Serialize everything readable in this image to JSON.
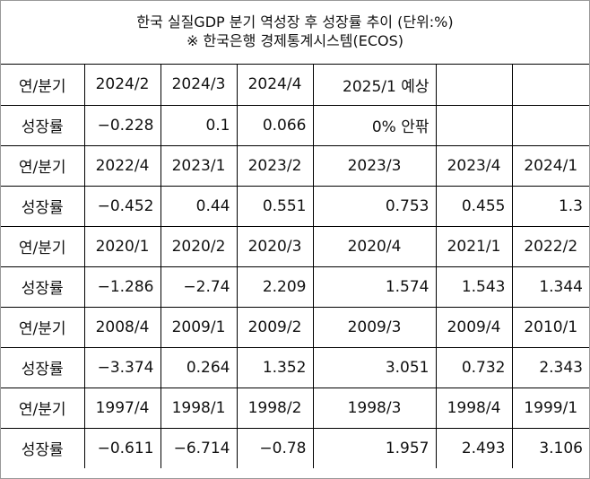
{
  "title": "한국 실질GDP 분기 역성장 후 성장률 추이 (단위:%)",
  "source": "※ 한국은행 경제통계시스템(ECOS)",
  "table": {
    "rows": [
      [
        "연/분기",
        "2024/2",
        "2024/3",
        "2024/4",
        "2025/1 예상"
      ],
      [
        "성장률",
        "−0.228",
        "0.1",
        "0.066",
        "0% 안팎"
      ],
      [
        "연/분기",
        "2022/4",
        "2023/1",
        "2023/2",
        "2023/3",
        "2023/4",
        "2024/1"
      ],
      [
        "성장률",
        "−0.452",
        "0.44",
        "0.551",
        "0.753",
        "0.455",
        "1.3"
      ],
      [
        "연/분기",
        "2020/1",
        "2020/2",
        "2020/3",
        "2020/4",
        "2021/1",
        "2022/2"
      ],
      [
        "성장률",
        "−1.286",
        "−2.74",
        "2.209",
        "1.574",
        "1.543",
        "1.344"
      ],
      [
        "연/분기",
        "2008/4",
        "2009/1",
        "2009/2",
        "2009/3",
        "2009/4",
        "2010/1"
      ],
      [
        "성장률",
        "−3.374",
        "0.264",
        "1.352",
        "3.051",
        "0.732",
        "2.343"
      ],
      [
        "연/분기",
        "1997/4",
        "1998/1",
        "1998/2",
        "1998/3",
        "1998/4",
        "1999/1"
      ],
      [
        "성장률",
        "−0.611",
        "−6.714",
        "−0.78",
        "1.957",
        "2.493",
        "3.106"
      ]
    ]
  }
}
